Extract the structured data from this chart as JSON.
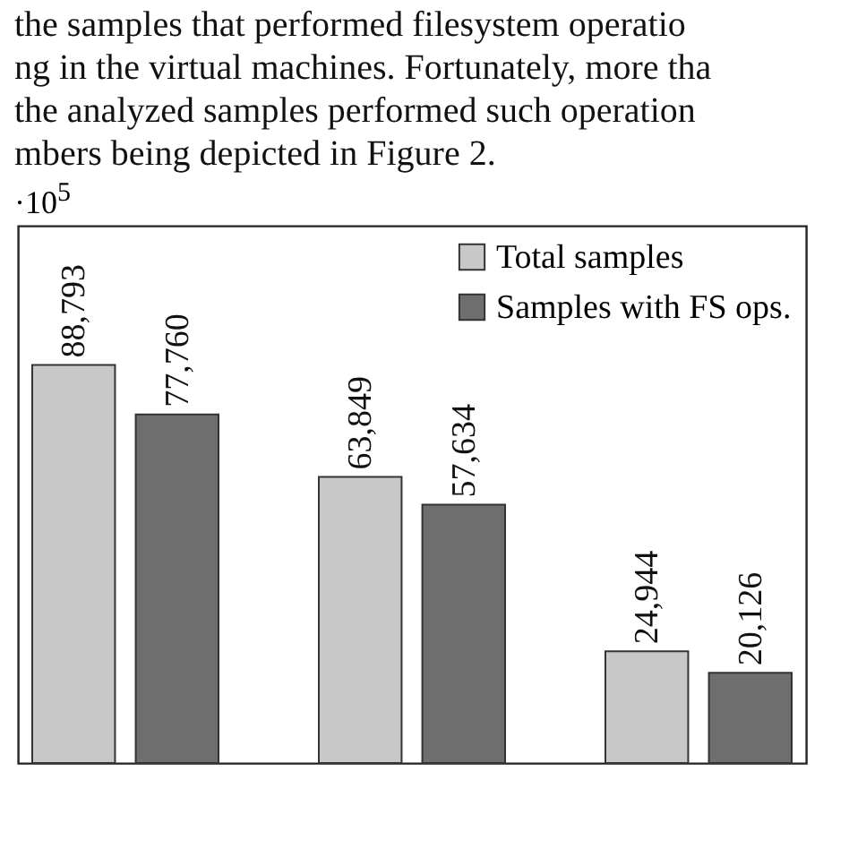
{
  "chart_data": {
    "type": "bar",
    "annotations": [
      "the samples that performed filesystem operatio",
      "ng in the virtual machines. Fortunately, more tha",
      "the analyzed samples performed such operation",
      "mbers being depicted in Figure 2.",
      "·10$^{5}$"
    ],
    "categories": [
      null,
      null,
      null
    ],
    "series": [
      {
        "name": "Total samples",
        "color": "#c8c8c8",
        "values": [
          88793,
          63849,
          24944
        ],
        "value_labels": [
          "88,793",
          "63,849",
          "24,944"
        ]
      },
      {
        "name": "Samples with FS ops.",
        "color": "#6e6e6e",
        "values": [
          77760,
          57634,
          20126
        ],
        "value_labels": [
          "77,760",
          "57,634",
          "20,126"
        ]
      }
    ],
    "legend": "top right"
  }
}
